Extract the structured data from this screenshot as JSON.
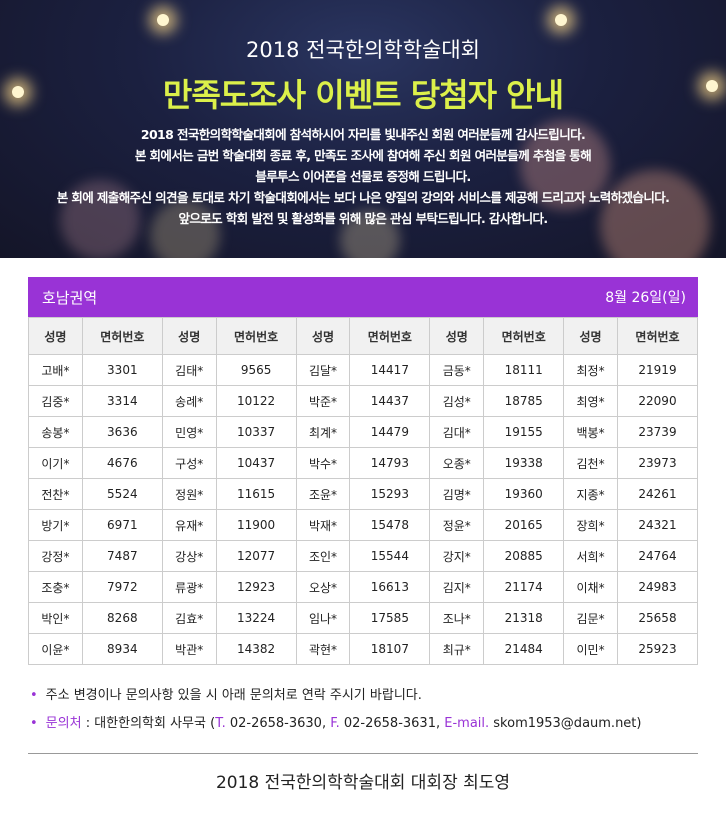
{
  "banner": {
    "title": "2018 전국한의학학술대회",
    "headline": "만족도조사 이벤트 당첨자 안내",
    "paragraph": [
      "2018 전국한의학학술대회에 참석하시어 자리를 빛내주신 회원 여러분들께 감사드립니다.",
      "본 회에서는 금번 학술대회 종료 후, 만족도 조사에 참여해 주신 회원 여러분들께 추첨을 통해",
      "블루투스 이어폰을 선물로 증정해 드립니다.",
      "본 회에 제출해주신 의견을 토대로 차기 학술대회에서는 보다 나은 양질의 강의와 서비스를 제공해 드리고자 노력하겠습니다.",
      "앞으로도 학회 발전 및 활성화를 위해 많은 관심 부탁드립니다. 감사합니다."
    ],
    "headline_color": "#dcf04a"
  },
  "section": {
    "region": "호남권역",
    "date": "8월 26일(일)",
    "accent": "#9933d6"
  },
  "table": {
    "headers": [
      "성명",
      "면허번호",
      "성명",
      "면허번호",
      "성명",
      "면허번호",
      "성명",
      "면허번호",
      "성명",
      "면허번호"
    ],
    "rows": [
      [
        "고배*",
        "3301",
        "김태*",
        "9565",
        "김달*",
        "14417",
        "금동*",
        "18111",
        "최정*",
        "21919"
      ],
      [
        "김중*",
        "3314",
        "송례*",
        "10122",
        "박준*",
        "14437",
        "김성*",
        "18785",
        "최영*",
        "22090"
      ],
      [
        "송봉*",
        "3636",
        "민영*",
        "10337",
        "최계*",
        "14479",
        "김대*",
        "19155",
        "백봉*",
        "23739"
      ],
      [
        "이기*",
        "4676",
        "구성*",
        "10437",
        "박수*",
        "14793",
        "오종*",
        "19338",
        "김천*",
        "23973"
      ],
      [
        "전찬*",
        "5524",
        "정원*",
        "11615",
        "조윤*",
        "15293",
        "김명*",
        "19360",
        "지종*",
        "24261"
      ],
      [
        "방기*",
        "6971",
        "유재*",
        "11900",
        "박재*",
        "15478",
        "정윤*",
        "20165",
        "장희*",
        "24321"
      ],
      [
        "강정*",
        "7487",
        "강상*",
        "12077",
        "조인*",
        "15544",
        "강지*",
        "20885",
        "서희*",
        "24764"
      ],
      [
        "조충*",
        "7972",
        "류광*",
        "12923",
        "오상*",
        "16613",
        "김지*",
        "21174",
        "이채*",
        "24983"
      ],
      [
        "박인*",
        "8268",
        "김효*",
        "13224",
        "임나*",
        "17585",
        "조나*",
        "21318",
        "김문*",
        "25658"
      ],
      [
        "이윤*",
        "8934",
        "박관*",
        "14382",
        "곽현*",
        "18107",
        "최규*",
        "21484",
        "이민*",
        "25923"
      ]
    ]
  },
  "notes": {
    "line1": "주소 변경이나 문의사항 있을 시 아래 문의처로 연락 주시기 바랍니다.",
    "contact_label": "문의처",
    "contact_org": " : 대한한의학회 사무국 (",
    "t_label": "T.",
    "t_value": " 02-2658-3630, ",
    "f_label": "F.",
    "f_value": " 02-2658-3631, ",
    "e_label": "E-mail.",
    "e_value": " skom1953@daum.net)"
  },
  "footer": {
    "signature": "2018 전국한의학학술대회 대회장 최도영"
  }
}
